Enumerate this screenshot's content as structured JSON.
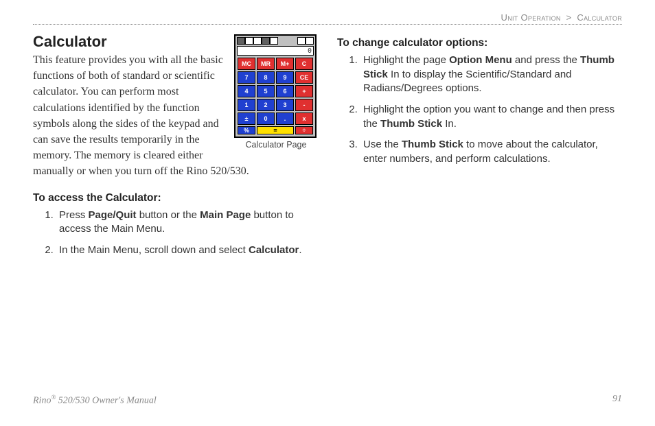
{
  "breadcrumb": {
    "section": "Unit Operation",
    "sep": ">",
    "page": "Calculator"
  },
  "title": "Calculator",
  "intro": "This feature provides you with all the basic functions of both of standard or scientific calculator. You can perform most calculations identified by the function symbols along the sides of the keypad and can save the results temporarily in the memory. The memory is cleared either manually or when you turn off the Rino 520/530.",
  "figure_caption": "Calculator Page",
  "calc_display": "0",
  "keys": [
    {
      "label": "MC",
      "cls": "red"
    },
    {
      "label": "MR",
      "cls": "red"
    },
    {
      "label": "M+",
      "cls": "red"
    },
    {
      "label": "C",
      "cls": "red"
    },
    {
      "label": "7",
      "cls": "blue"
    },
    {
      "label": "8",
      "cls": "blue"
    },
    {
      "label": "9",
      "cls": "blue"
    },
    {
      "label": "CE",
      "cls": "red"
    },
    {
      "label": "4",
      "cls": "blue"
    },
    {
      "label": "5",
      "cls": "blue"
    },
    {
      "label": "6",
      "cls": "blue"
    },
    {
      "label": "+",
      "cls": "red"
    },
    {
      "label": "1",
      "cls": "blue"
    },
    {
      "label": "2",
      "cls": "blue"
    },
    {
      "label": "3",
      "cls": "blue"
    },
    {
      "label": "-",
      "cls": "red"
    },
    {
      "label": "±",
      "cls": "blue"
    },
    {
      "label": "0",
      "cls": "blue"
    },
    {
      "label": ".",
      "cls": "blue"
    },
    {
      "label": "x",
      "cls": "red"
    },
    {
      "label": "%",
      "cls": "blue"
    },
    {
      "label": "=",
      "cls": "yellow span2"
    },
    {
      "label": "÷",
      "cls": "red"
    }
  ],
  "access_heading": "To access the Calculator:",
  "access_steps": [
    {
      "pre": "Press ",
      "b1": "Page/Quit",
      "mid": " button or the ",
      "b2": "Main Page",
      "post": " button to access the Main Menu."
    },
    {
      "pre": "In the Main Menu, scroll down and select ",
      "b1": "Calculator",
      "mid": "",
      "b2": "",
      "post": "."
    }
  ],
  "options_heading": "To change calculator options:",
  "options_steps": [
    {
      "pre": "Highlight the page ",
      "b1": "Option Menu",
      "mid": " and press the ",
      "b2": "Thumb Stick",
      "post": " In to display the Scientific/Standard and Radians/Degrees options."
    },
    {
      "pre": "Highlight the option you want to change and then press the ",
      "b1": "Thumb Stick",
      "mid": "",
      "b2": "",
      "post": " In."
    },
    {
      "pre": "Use the ",
      "b1": "Thumb Stick",
      "mid": "",
      "b2": "",
      "post": " to move about the calculator, enter numbers, and perform calculations."
    }
  ],
  "footer": {
    "product_pre": "Rino",
    "product_post": " 520/530 Owner's Manual",
    "pagenum": "91"
  }
}
